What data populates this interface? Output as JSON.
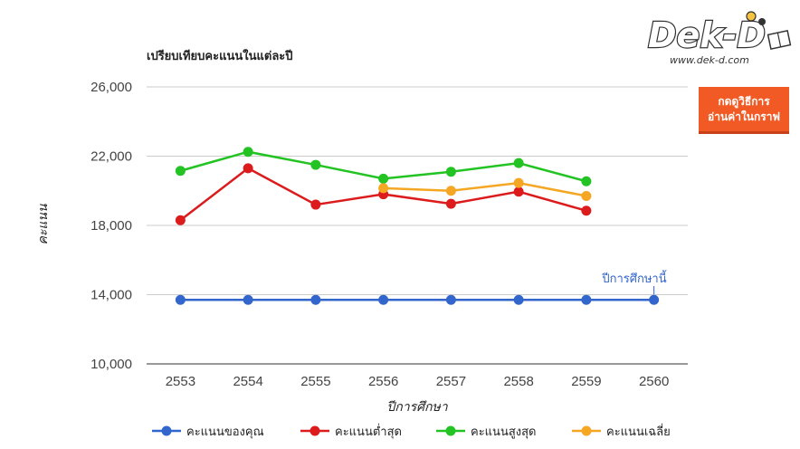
{
  "logo": {
    "text": "Dek-D",
    "url": "www.dek-d.com"
  },
  "guide_button": {
    "line1": "กดดูวิธีการ",
    "line2": "อ่านค่าในกราฟ"
  },
  "chart_data": {
    "type": "line",
    "title": "เปรียบเทียบคะแนนในแต่ละปี",
    "xlabel": "ปีการศึกษา",
    "ylabel": "คะแนน",
    "categories": [
      "2553",
      "2554",
      "2555",
      "2556",
      "2557",
      "2558",
      "2559",
      "2560"
    ],
    "ylim": [
      10000,
      26000
    ],
    "yticks": [
      10000,
      14000,
      18000,
      22000,
      26000
    ],
    "ytick_labels": [
      "10,000",
      "14,000",
      "18,000",
      "22,000",
      "26,000"
    ],
    "grid": true,
    "legend_position": "bottom",
    "series": [
      {
        "name": "คะแนนของคุณ",
        "color": "#3366cc",
        "values": [
          13700,
          13700,
          13700,
          13700,
          13700,
          13700,
          13700,
          13700
        ]
      },
      {
        "name": "คะแนนต่ำสุด",
        "color": "#dc1c1c",
        "values": [
          18300,
          21300,
          19200,
          19800,
          19250,
          19950,
          18850,
          null
        ]
      },
      {
        "name": "คะแนนสูงสุด",
        "color": "#22c322",
        "values": [
          21150,
          22250,
          21500,
          20700,
          21100,
          21600,
          20550,
          null
        ]
      },
      {
        "name": "คะแนนเฉลี่ย",
        "color": "#f5a623",
        "values": [
          null,
          null,
          null,
          20150,
          20000,
          20450,
          19700,
          null
        ]
      }
    ],
    "annotation": {
      "text": "ปีการศึกษานี้",
      "category": "2560"
    }
  }
}
